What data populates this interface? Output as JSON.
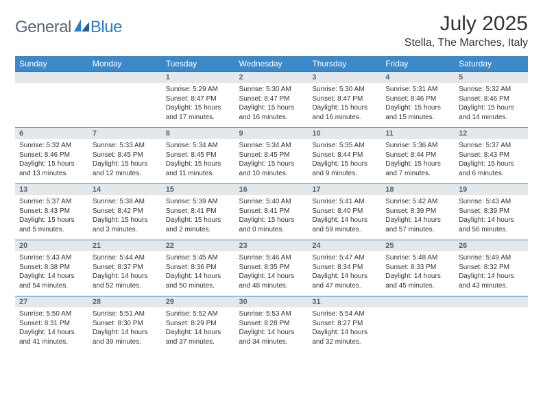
{
  "logo": {
    "text1": "General",
    "text2": "Blue"
  },
  "title": "July 2025",
  "location": "Stella, The Marches, Italy",
  "colors": {
    "header_bg": "#3b89c9",
    "header_text": "#ffffff",
    "daynum_bg": "#e5e8ea",
    "daynum_text": "#5a6570",
    "rule": "#2a7fc9",
    "logo_gray": "#5a6570",
    "logo_blue": "#2a7fc9"
  },
  "dayNames": [
    "Sunday",
    "Monday",
    "Tuesday",
    "Wednesday",
    "Thursday",
    "Friday",
    "Saturday"
  ],
  "weeks": [
    [
      null,
      null,
      {
        "n": "1",
        "sr": "5:29 AM",
        "ss": "8:47 PM",
        "dl": "15 hours and 17 minutes."
      },
      {
        "n": "2",
        "sr": "5:30 AM",
        "ss": "8:47 PM",
        "dl": "15 hours and 16 minutes."
      },
      {
        "n": "3",
        "sr": "5:30 AM",
        "ss": "8:47 PM",
        "dl": "15 hours and 16 minutes."
      },
      {
        "n": "4",
        "sr": "5:31 AM",
        "ss": "8:46 PM",
        "dl": "15 hours and 15 minutes."
      },
      {
        "n": "5",
        "sr": "5:32 AM",
        "ss": "8:46 PM",
        "dl": "15 hours and 14 minutes."
      }
    ],
    [
      {
        "n": "6",
        "sr": "5:32 AM",
        "ss": "8:46 PM",
        "dl": "15 hours and 13 minutes."
      },
      {
        "n": "7",
        "sr": "5:33 AM",
        "ss": "8:45 PM",
        "dl": "15 hours and 12 minutes."
      },
      {
        "n": "8",
        "sr": "5:34 AM",
        "ss": "8:45 PM",
        "dl": "15 hours and 11 minutes."
      },
      {
        "n": "9",
        "sr": "5:34 AM",
        "ss": "8:45 PM",
        "dl": "15 hours and 10 minutes."
      },
      {
        "n": "10",
        "sr": "5:35 AM",
        "ss": "8:44 PM",
        "dl": "15 hours and 9 minutes."
      },
      {
        "n": "11",
        "sr": "5:36 AM",
        "ss": "8:44 PM",
        "dl": "15 hours and 7 minutes."
      },
      {
        "n": "12",
        "sr": "5:37 AM",
        "ss": "8:43 PM",
        "dl": "15 hours and 6 minutes."
      }
    ],
    [
      {
        "n": "13",
        "sr": "5:37 AM",
        "ss": "8:43 PM",
        "dl": "15 hours and 5 minutes."
      },
      {
        "n": "14",
        "sr": "5:38 AM",
        "ss": "8:42 PM",
        "dl": "15 hours and 3 minutes."
      },
      {
        "n": "15",
        "sr": "5:39 AM",
        "ss": "8:41 PM",
        "dl": "15 hours and 2 minutes."
      },
      {
        "n": "16",
        "sr": "5:40 AM",
        "ss": "8:41 PM",
        "dl": "15 hours and 0 minutes."
      },
      {
        "n": "17",
        "sr": "5:41 AM",
        "ss": "8:40 PM",
        "dl": "14 hours and 59 minutes."
      },
      {
        "n": "18",
        "sr": "5:42 AM",
        "ss": "8:39 PM",
        "dl": "14 hours and 57 minutes."
      },
      {
        "n": "19",
        "sr": "5:43 AM",
        "ss": "8:39 PM",
        "dl": "14 hours and 56 minutes."
      }
    ],
    [
      {
        "n": "20",
        "sr": "5:43 AM",
        "ss": "8:38 PM",
        "dl": "14 hours and 54 minutes."
      },
      {
        "n": "21",
        "sr": "5:44 AM",
        "ss": "8:37 PM",
        "dl": "14 hours and 52 minutes."
      },
      {
        "n": "22",
        "sr": "5:45 AM",
        "ss": "8:36 PM",
        "dl": "14 hours and 50 minutes."
      },
      {
        "n": "23",
        "sr": "5:46 AM",
        "ss": "8:35 PM",
        "dl": "14 hours and 48 minutes."
      },
      {
        "n": "24",
        "sr": "5:47 AM",
        "ss": "8:34 PM",
        "dl": "14 hours and 47 minutes."
      },
      {
        "n": "25",
        "sr": "5:48 AM",
        "ss": "8:33 PM",
        "dl": "14 hours and 45 minutes."
      },
      {
        "n": "26",
        "sr": "5:49 AM",
        "ss": "8:32 PM",
        "dl": "14 hours and 43 minutes."
      }
    ],
    [
      {
        "n": "27",
        "sr": "5:50 AM",
        "ss": "8:31 PM",
        "dl": "14 hours and 41 minutes."
      },
      {
        "n": "28",
        "sr": "5:51 AM",
        "ss": "8:30 PM",
        "dl": "14 hours and 39 minutes."
      },
      {
        "n": "29",
        "sr": "5:52 AM",
        "ss": "8:29 PM",
        "dl": "14 hours and 37 minutes."
      },
      {
        "n": "30",
        "sr": "5:53 AM",
        "ss": "8:28 PM",
        "dl": "14 hours and 34 minutes."
      },
      {
        "n": "31",
        "sr": "5:54 AM",
        "ss": "8:27 PM",
        "dl": "14 hours and 32 minutes."
      },
      null,
      null
    ]
  ]
}
